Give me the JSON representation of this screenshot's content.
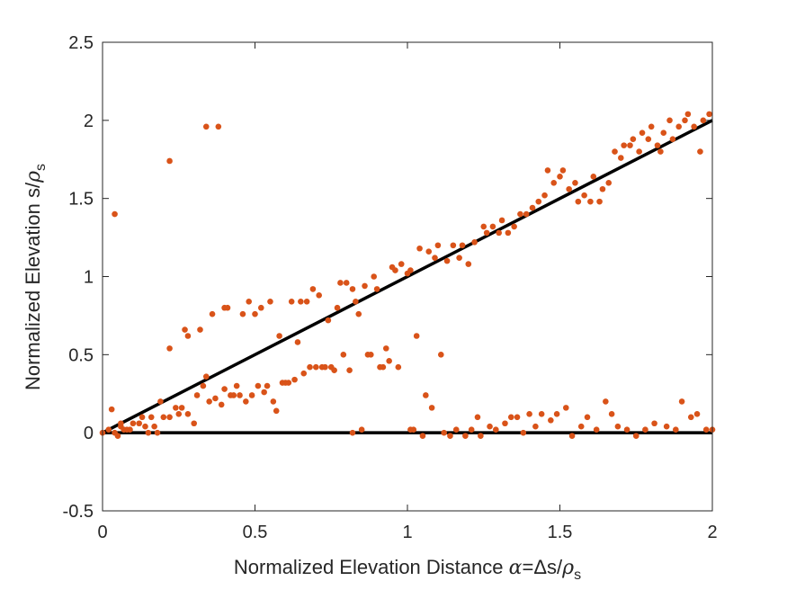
{
  "chart_data": {
    "type": "scatter",
    "title": "",
    "xlabel": {
      "text": "Normalized Elevation Distance",
      "symbol": "α",
      "equals": "=Δs/",
      "rho": "ρ",
      "subscript": "s"
    },
    "ylabel": {
      "text": "Normalized Elevation s/",
      "rho": "ρ",
      "subscript": "s"
    },
    "xlim": [
      0,
      2
    ],
    "ylim": [
      -0.5,
      2.5
    ],
    "xticks": [
      0,
      0.5,
      1,
      1.5,
      2
    ],
    "xtick_labels": [
      "0",
      "0.5",
      "1",
      "1.5",
      "2"
    ],
    "yticks": [
      -0.5,
      0,
      0.5,
      1,
      1.5,
      2,
      2.5
    ],
    "ytick_labels": [
      "-0.5",
      "0",
      "0.5",
      "1",
      "1.5",
      "2",
      "2.5"
    ],
    "grid": false,
    "colors": {
      "points": "#D95319",
      "lines": "#000000",
      "axes": "#262626"
    },
    "lines": [
      {
        "name": "y = x",
        "x": [
          0,
          2
        ],
        "y": [
          0,
          2
        ]
      },
      {
        "name": "y = 0",
        "x": [
          0,
          2
        ],
        "y": [
          0,
          0
        ]
      }
    ],
    "series": [
      {
        "name": "measurements",
        "points": [
          [
            0.0,
            0.0
          ],
          [
            0.02,
            0.02
          ],
          [
            0.03,
            0.15
          ],
          [
            0.04,
            0.0
          ],
          [
            0.04,
            1.4
          ],
          [
            0.05,
            -0.02
          ],
          [
            0.06,
            0.04
          ],
          [
            0.06,
            0.06
          ],
          [
            0.07,
            0.02
          ],
          [
            0.08,
            0.02
          ],
          [
            0.09,
            0.02
          ],
          [
            0.1,
            0.06
          ],
          [
            0.12,
            0.06
          ],
          [
            0.13,
            0.1
          ],
          [
            0.14,
            0.04
          ],
          [
            0.15,
            0.0
          ],
          [
            0.16,
            0.1
          ],
          [
            0.17,
            0.04
          ],
          [
            0.18,
            0.0
          ],
          [
            0.19,
            0.2
          ],
          [
            0.2,
            0.1
          ],
          [
            0.22,
            0.1
          ],
          [
            0.22,
            0.54
          ],
          [
            0.22,
            1.74
          ],
          [
            0.24,
            0.16
          ],
          [
            0.25,
            0.12
          ],
          [
            0.26,
            0.16
          ],
          [
            0.27,
            0.66
          ],
          [
            0.28,
            0.62
          ],
          [
            0.28,
            0.12
          ],
          [
            0.3,
            0.06
          ],
          [
            0.31,
            0.24
          ],
          [
            0.32,
            0.66
          ],
          [
            0.33,
            0.3
          ],
          [
            0.34,
            0.36
          ],
          [
            0.34,
            1.96
          ],
          [
            0.35,
            0.2
          ],
          [
            0.36,
            0.76
          ],
          [
            0.37,
            0.22
          ],
          [
            0.38,
            1.96
          ],
          [
            0.39,
            0.18
          ],
          [
            0.4,
            0.28
          ],
          [
            0.4,
            0.8
          ],
          [
            0.41,
            0.8
          ],
          [
            0.42,
            0.24
          ],
          [
            0.43,
            0.24
          ],
          [
            0.44,
            0.3
          ],
          [
            0.45,
            0.24
          ],
          [
            0.46,
            0.76
          ],
          [
            0.47,
            0.2
          ],
          [
            0.48,
            0.84
          ],
          [
            0.49,
            0.24
          ],
          [
            0.5,
            0.76
          ],
          [
            0.51,
            0.3
          ],
          [
            0.52,
            0.8
          ],
          [
            0.53,
            0.26
          ],
          [
            0.54,
            0.3
          ],
          [
            0.55,
            0.84
          ],
          [
            0.56,
            0.2
          ],
          [
            0.57,
            0.14
          ],
          [
            0.58,
            0.62
          ],
          [
            0.59,
            0.32
          ],
          [
            0.6,
            0.32
          ],
          [
            0.61,
            0.32
          ],
          [
            0.62,
            0.84
          ],
          [
            0.63,
            0.34
          ],
          [
            0.64,
            0.58
          ],
          [
            0.65,
            0.84
          ],
          [
            0.66,
            0.38
          ],
          [
            0.67,
            0.84
          ],
          [
            0.68,
            0.42
          ],
          [
            0.69,
            0.92
          ],
          [
            0.7,
            0.42
          ],
          [
            0.71,
            0.88
          ],
          [
            0.72,
            0.42
          ],
          [
            0.73,
            0.42
          ],
          [
            0.74,
            0.72
          ],
          [
            0.75,
            0.42
          ],
          [
            0.76,
            0.4
          ],
          [
            0.77,
            0.8
          ],
          [
            0.78,
            0.96
          ],
          [
            0.79,
            0.5
          ],
          [
            0.8,
            0.96
          ],
          [
            0.81,
            0.4
          ],
          [
            0.82,
            0.92
          ],
          [
            0.82,
            0.0
          ],
          [
            0.83,
            0.84
          ],
          [
            0.84,
            0.76
          ],
          [
            0.85,
            0.02
          ],
          [
            0.86,
            0.94
          ],
          [
            0.87,
            0.5
          ],
          [
            0.88,
            0.5
          ],
          [
            0.89,
            1.0
          ],
          [
            0.9,
            0.92
          ],
          [
            0.91,
            0.42
          ],
          [
            0.92,
            0.42
          ],
          [
            0.93,
            0.54
          ],
          [
            0.94,
            0.46
          ],
          [
            0.95,
            1.06
          ],
          [
            0.96,
            1.04
          ],
          [
            0.97,
            0.42
          ],
          [
            0.98,
            1.08
          ],
          [
            1.0,
            1.02
          ],
          [
            1.01,
            0.02
          ],
          [
            1.01,
            1.04
          ],
          [
            1.02,
            0.02
          ],
          [
            1.03,
            0.62
          ],
          [
            1.04,
            1.18
          ],
          [
            1.05,
            -0.02
          ],
          [
            1.06,
            0.24
          ],
          [
            1.07,
            1.16
          ],
          [
            1.08,
            0.16
          ],
          [
            1.09,
            1.12
          ],
          [
            1.1,
            1.2
          ],
          [
            1.11,
            0.5
          ],
          [
            1.12,
            0.0
          ],
          [
            1.13,
            1.1
          ],
          [
            1.14,
            -0.02
          ],
          [
            1.15,
            1.2
          ],
          [
            1.16,
            0.02
          ],
          [
            1.17,
            1.12
          ],
          [
            1.18,
            1.2
          ],
          [
            1.19,
            -0.02
          ],
          [
            1.2,
            1.08
          ],
          [
            1.21,
            0.02
          ],
          [
            1.22,
            1.22
          ],
          [
            1.23,
            0.1
          ],
          [
            1.24,
            -0.02
          ],
          [
            1.25,
            1.32
          ],
          [
            1.26,
            1.28
          ],
          [
            1.27,
            0.04
          ],
          [
            1.28,
            1.32
          ],
          [
            1.29,
            0.02
          ],
          [
            1.3,
            1.28
          ],
          [
            1.31,
            1.36
          ],
          [
            1.32,
            0.06
          ],
          [
            1.33,
            1.28
          ],
          [
            1.34,
            0.1
          ],
          [
            1.35,
            1.32
          ],
          [
            1.36,
            0.1
          ],
          [
            1.37,
            1.4
          ],
          [
            1.38,
            0.0
          ],
          [
            1.39,
            1.4
          ],
          [
            1.4,
            0.12
          ],
          [
            1.41,
            1.44
          ],
          [
            1.42,
            0.04
          ],
          [
            1.43,
            1.48
          ],
          [
            1.44,
            0.12
          ],
          [
            1.45,
            1.52
          ],
          [
            1.46,
            1.68
          ],
          [
            1.47,
            0.08
          ],
          [
            1.48,
            1.6
          ],
          [
            1.49,
            0.12
          ],
          [
            1.5,
            1.64
          ],
          [
            1.51,
            1.68
          ],
          [
            1.52,
            0.16
          ],
          [
            1.53,
            1.56
          ],
          [
            1.54,
            -0.02
          ],
          [
            1.55,
            1.6
          ],
          [
            1.56,
            1.48
          ],
          [
            1.57,
            0.04
          ],
          [
            1.58,
            1.52
          ],
          [
            1.59,
            0.1
          ],
          [
            1.6,
            1.48
          ],
          [
            1.61,
            1.64
          ],
          [
            1.62,
            0.02
          ],
          [
            1.63,
            1.48
          ],
          [
            1.64,
            1.56
          ],
          [
            1.65,
            0.2
          ],
          [
            1.66,
            1.6
          ],
          [
            1.67,
            0.12
          ],
          [
            1.68,
            1.8
          ],
          [
            1.69,
            0.04
          ],
          [
            1.7,
            1.76
          ],
          [
            1.71,
            1.84
          ],
          [
            1.72,
            0.02
          ],
          [
            1.73,
            1.84
          ],
          [
            1.74,
            1.88
          ],
          [
            1.75,
            -0.02
          ],
          [
            1.76,
            1.8
          ],
          [
            1.77,
            1.92
          ],
          [
            1.78,
            0.02
          ],
          [
            1.79,
            1.88
          ],
          [
            1.8,
            1.96
          ],
          [
            1.81,
            0.06
          ],
          [
            1.82,
            1.84
          ],
          [
            1.83,
            1.8
          ],
          [
            1.84,
            1.92
          ],
          [
            1.85,
            0.04
          ],
          [
            1.86,
            2.0
          ],
          [
            1.87,
            1.88
          ],
          [
            1.88,
            0.02
          ],
          [
            1.89,
            1.96
          ],
          [
            1.9,
            0.2
          ],
          [
            1.91,
            2.0
          ],
          [
            1.92,
            2.04
          ],
          [
            1.93,
            0.1
          ],
          [
            1.94,
            1.96
          ],
          [
            1.95,
            0.12
          ],
          [
            1.96,
            1.8
          ],
          [
            1.97,
            2.0
          ],
          [
            1.98,
            0.02
          ],
          [
            1.99,
            2.04
          ],
          [
            2.0,
            0.02
          ]
        ]
      }
    ]
  }
}
